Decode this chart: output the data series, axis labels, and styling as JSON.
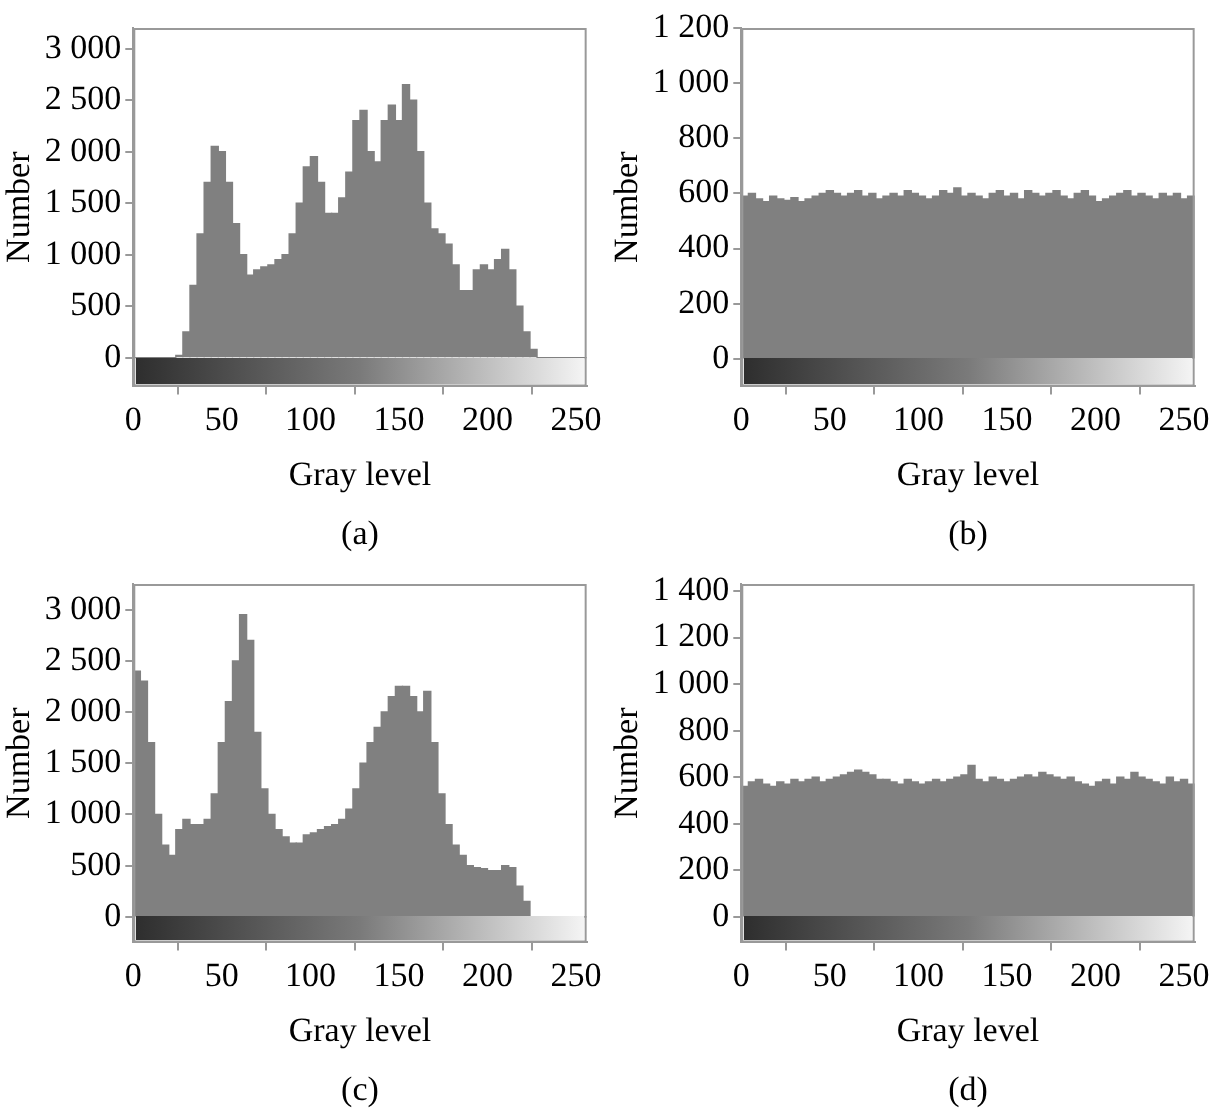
{
  "chart_data": [
    {
      "type": "histogram",
      "xlabel": "Gray level",
      "ylabel": "Number",
      "annotations": [
        "(a)"
      ],
      "color": "#808080",
      "bins": [
        0,
        4,
        8,
        12,
        16,
        20,
        24,
        28,
        32,
        36,
        40,
        44,
        48,
        52,
        56,
        60,
        64,
        68,
        72,
        76,
        80,
        84,
        88,
        92,
        96,
        100,
        104,
        108,
        112,
        116,
        120,
        124,
        128,
        132,
        136,
        140,
        144,
        148,
        152,
        156,
        160,
        164,
        168,
        172,
        176,
        180,
        184,
        188,
        192,
        196,
        200,
        204,
        208,
        212,
        216,
        220,
        224,
        228,
        232,
        236,
        240,
        244,
        248,
        252,
        256
      ],
      "values": [
        0,
        0,
        0,
        0,
        0,
        0,
        20,
        250,
        700,
        1200,
        1700,
        2050,
        2000,
        1700,
        1300,
        1000,
        800,
        850,
        880,
        900,
        950,
        1000,
        1200,
        1500,
        1850,
        1950,
        1700,
        1400,
        1400,
        1550,
        1800,
        2300,
        2400,
        2000,
        1900,
        2300,
        2450,
        2300,
        2650,
        2500,
        2000,
        1500,
        1250,
        1200,
        1100,
        900,
        650,
        650,
        850,
        900,
        850,
        950,
        1050,
        850,
        500,
        250,
        80,
        0,
        0,
        0,
        0,
        0,
        0,
        0
      ],
      "xlim": [
        0,
        256
      ],
      "xticks": [
        0,
        50,
        100,
        150,
        200,
        250
      ],
      "ylim": [
        -280,
        3200
      ],
      "yticks": [
        0,
        500,
        {
          "value": 1000,
          "label": "1 000"
        },
        {
          "value": 1500,
          "label": "1 500"
        },
        {
          "value": 2000,
          "label": "2 000"
        },
        {
          "value": 2500,
          "label": "2 500"
        },
        {
          "value": 3000,
          "label": "3 000"
        }
      ]
    },
    {
      "type": "histogram",
      "xlabel": "Gray level",
      "ylabel": "Number",
      "annotations": [
        "(b)"
      ],
      "color": "#808080",
      "bins": [
        0,
        4,
        8,
        12,
        16,
        20,
        24,
        28,
        32,
        36,
        40,
        44,
        48,
        52,
        56,
        60,
        64,
        68,
        72,
        76,
        80,
        84,
        88,
        92,
        96,
        100,
        104,
        108,
        112,
        116,
        120,
        124,
        128,
        132,
        136,
        140,
        144,
        148,
        152,
        156,
        160,
        164,
        168,
        172,
        176,
        180,
        184,
        188,
        192,
        196,
        200,
        204,
        208,
        212,
        216,
        220,
        224,
        228,
        232,
        236,
        240,
        244,
        248,
        252,
        256
      ],
      "values": [
        590,
        600,
        580,
        570,
        590,
        580,
        575,
        585,
        570,
        580,
        590,
        600,
        610,
        600,
        590,
        600,
        610,
        590,
        600,
        580,
        590,
        600,
        590,
        610,
        600,
        590,
        580,
        590,
        610,
        600,
        620,
        590,
        600,
        590,
        580,
        600,
        610,
        590,
        600,
        580,
        610,
        600,
        590,
        600,
        610,
        590,
        580,
        600,
        610,
        590,
        570,
        580,
        590,
        600,
        610,
        590,
        600,
        590,
        580,
        600,
        590,
        600,
        580,
        590
      ],
      "xlim": [
        0,
        256
      ],
      "xticks": [
        0,
        50,
        100,
        150,
        200,
        250
      ],
      "ylim": [
        -100,
        1200
      ],
      "yticks": [
        0,
        200,
        400,
        600,
        800,
        {
          "value": 1000,
          "label": "1 000"
        },
        {
          "value": 1200,
          "label": "1 200"
        }
      ]
    },
    {
      "type": "histogram",
      "xlabel": "Gray level",
      "ylabel": "Number",
      "annotations": [
        "(c)"
      ],
      "color": "#808080",
      "bins": [
        0,
        4,
        8,
        12,
        16,
        20,
        24,
        28,
        32,
        36,
        40,
        44,
        48,
        52,
        56,
        60,
        64,
        68,
        72,
        76,
        80,
        84,
        88,
        92,
        96,
        100,
        104,
        108,
        112,
        116,
        120,
        124,
        128,
        132,
        136,
        140,
        144,
        148,
        152,
        156,
        160,
        164,
        168,
        172,
        176,
        180,
        184,
        188,
        192,
        196,
        200,
        204,
        208,
        212,
        216,
        220,
        224,
        228,
        232,
        236,
        240,
        244,
        248,
        252,
        256
      ],
      "values": [
        2400,
        2300,
        1700,
        1000,
        700,
        600,
        850,
        950,
        900,
        900,
        950,
        1200,
        1700,
        2100,
        2500,
        2950,
        2700,
        1800,
        1250,
        1000,
        850,
        780,
        720,
        720,
        800,
        820,
        850,
        880,
        900,
        950,
        1050,
        1250,
        1500,
        1700,
        1850,
        2000,
        2150,
        2250,
        2250,
        2150,
        2000,
        2200,
        1700,
        1200,
        900,
        700,
        600,
        500,
        480,
        470,
        450,
        450,
        500,
        480,
        300,
        150,
        0,
        0,
        0,
        0,
        0,
        0,
        0,
        0
      ],
      "xlim": [
        0,
        256
      ],
      "xticks": [
        0,
        50,
        100,
        150,
        200,
        250
      ],
      "ylim": [
        -250,
        3250
      ],
      "yticks": [
        0,
        500,
        {
          "value": 1000,
          "label": "1 000"
        },
        {
          "value": 1500,
          "label": "1 500"
        },
        {
          "value": 2000,
          "label": "2 000"
        },
        {
          "value": 2500,
          "label": "2 500"
        },
        {
          "value": 3000,
          "label": "3 000"
        }
      ]
    },
    {
      "type": "histogram",
      "xlabel": "Gray level",
      "ylabel": "Number",
      "annotations": [
        "(d)"
      ],
      "color": "#808080",
      "bins": [
        0,
        4,
        8,
        12,
        16,
        20,
        24,
        28,
        32,
        36,
        40,
        44,
        48,
        52,
        56,
        60,
        64,
        68,
        72,
        76,
        80,
        84,
        88,
        92,
        96,
        100,
        104,
        108,
        112,
        116,
        120,
        124,
        128,
        132,
        136,
        140,
        144,
        148,
        152,
        156,
        160,
        164,
        168,
        172,
        176,
        180,
        184,
        188,
        192,
        196,
        200,
        204,
        208,
        212,
        216,
        220,
        224,
        228,
        232,
        236,
        240,
        244,
        248,
        252,
        256
      ],
      "values": [
        560,
        580,
        590,
        570,
        560,
        580,
        570,
        590,
        580,
        590,
        600,
        580,
        590,
        600,
        610,
        620,
        630,
        620,
        610,
        590,
        590,
        580,
        570,
        590,
        580,
        570,
        580,
        590,
        580,
        590,
        600,
        610,
        650,
        590,
        580,
        600,
        590,
        580,
        590,
        600,
        610,
        600,
        620,
        610,
        600,
        590,
        600,
        580,
        570,
        560,
        580,
        590,
        570,
        600,
        590,
        620,
        600,
        590,
        580,
        570,
        600,
        580,
        590,
        570
      ],
      "xlim": [
        0,
        256
      ],
      "xticks": [
        0,
        50,
        100,
        150,
        200,
        250
      ],
      "ylim": [
        -110,
        1430
      ],
      "yticks": [
        0,
        200,
        400,
        600,
        800,
        {
          "value": 1000,
          "label": "1 000"
        },
        {
          "value": 1200,
          "label": "1 200"
        },
        {
          "value": 1400,
          "label": "1 400"
        }
      ]
    }
  ]
}
